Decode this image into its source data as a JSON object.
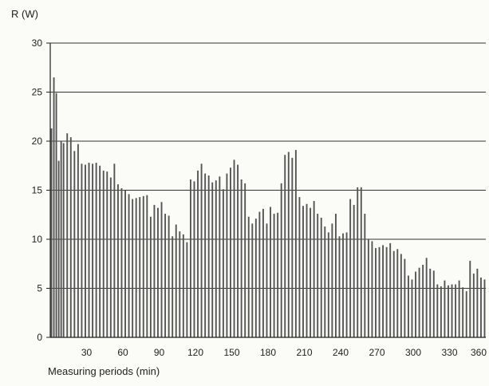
{
  "chart_data": {
    "type": "bar",
    "ylabel": "R (W)",
    "xlabel": "Measuring periods (min)",
    "ylim": [
      0,
      30
    ],
    "xlim": [
      0,
      360
    ],
    "yticks": [
      0,
      5,
      10,
      15,
      20,
      25,
      30
    ],
    "xticks": [
      30,
      60,
      90,
      120,
      150,
      180,
      210,
      240,
      270,
      300,
      330,
      360
    ],
    "grid": "horizontal",
    "bar_color": "#555555",
    "x": [
      1,
      3,
      5,
      7,
      9,
      11,
      14,
      17,
      20,
      23,
      26,
      29,
      32,
      35,
      38,
      41,
      44,
      47,
      50,
      53,
      56,
      59,
      62,
      65,
      68,
      71,
      74,
      77,
      80,
      83,
      86,
      89,
      92,
      95,
      98,
      101,
      104,
      107,
      110,
      113,
      116,
      119,
      122,
      125,
      128,
      131,
      134,
      137,
      140,
      143,
      146,
      149,
      152,
      155,
      158,
      161,
      164,
      167,
      170,
      173,
      176,
      179,
      182,
      185,
      188,
      191,
      194,
      197,
      200,
      203,
      206,
      209,
      212,
      215,
      218,
      221,
      224,
      227,
      230,
      233,
      236,
      239,
      242,
      245,
      248,
      251,
      254,
      257,
      260,
      263,
      266,
      269,
      272,
      275,
      278,
      281,
      284,
      287,
      290,
      293,
      296,
      299,
      302,
      305,
      308,
      311,
      314,
      317,
      320,
      323,
      326,
      329,
      332,
      335,
      338,
      341,
      344,
      347,
      350,
      353,
      356,
      359
    ],
    "values": [
      21.3,
      26.5,
      24.9,
      18,
      20,
      19.8,
      20.8,
      20.4,
      19,
      19.7,
      17.7,
      17.6,
      17.8,
      17.7,
      17.8,
      17.5,
      17,
      16.9,
      16.3,
      17.7,
      15.6,
      15.2,
      15,
      14.6,
      14.1,
      14.2,
      14.3,
      14.4,
      14.5,
      12.3,
      13.5,
      13.2,
      13.8,
      12.6,
      12.4,
      10.3,
      11.5,
      10.8,
      10.5,
      9.7,
      16.1,
      15.9,
      17,
      17.7,
      16.7,
      16.5,
      15.8,
      16,
      16.4,
      15.1,
      16.7,
      17.3,
      18.1,
      17.6,
      16.1,
      15.7,
      12.3,
      11.6,
      12.1,
      12.8,
      13.1,
      11.6,
      13.3,
      12.6,
      12.7,
      15.7,
      18.6,
      18.9,
      18.3,
      19.1,
      14.3,
      13.4,
      13.6,
      13.2,
      13.9,
      12.6,
      12.2,
      11.3,
      10.7,
      11.6,
      12.6,
      10.3,
      10.6,
      10.7,
      14.1,
      13.5,
      15.3,
      15.3,
      12.6,
      10,
      9.8,
      9.1,
      9.2,
      9.4,
      9.2,
      9.6,
      8.8,
      9,
      8.5,
      8,
      6.3,
      5.9,
      6.7,
      7.1,
      7.4,
      8.1,
      7,
      6.8,
      5.4,
      5.2,
      5.8,
      5.3,
      5.4,
      5.4,
      5.8,
      5.1,
      4.7,
      7.8,
      6.5,
      7,
      6.1,
      5.9
    ]
  }
}
